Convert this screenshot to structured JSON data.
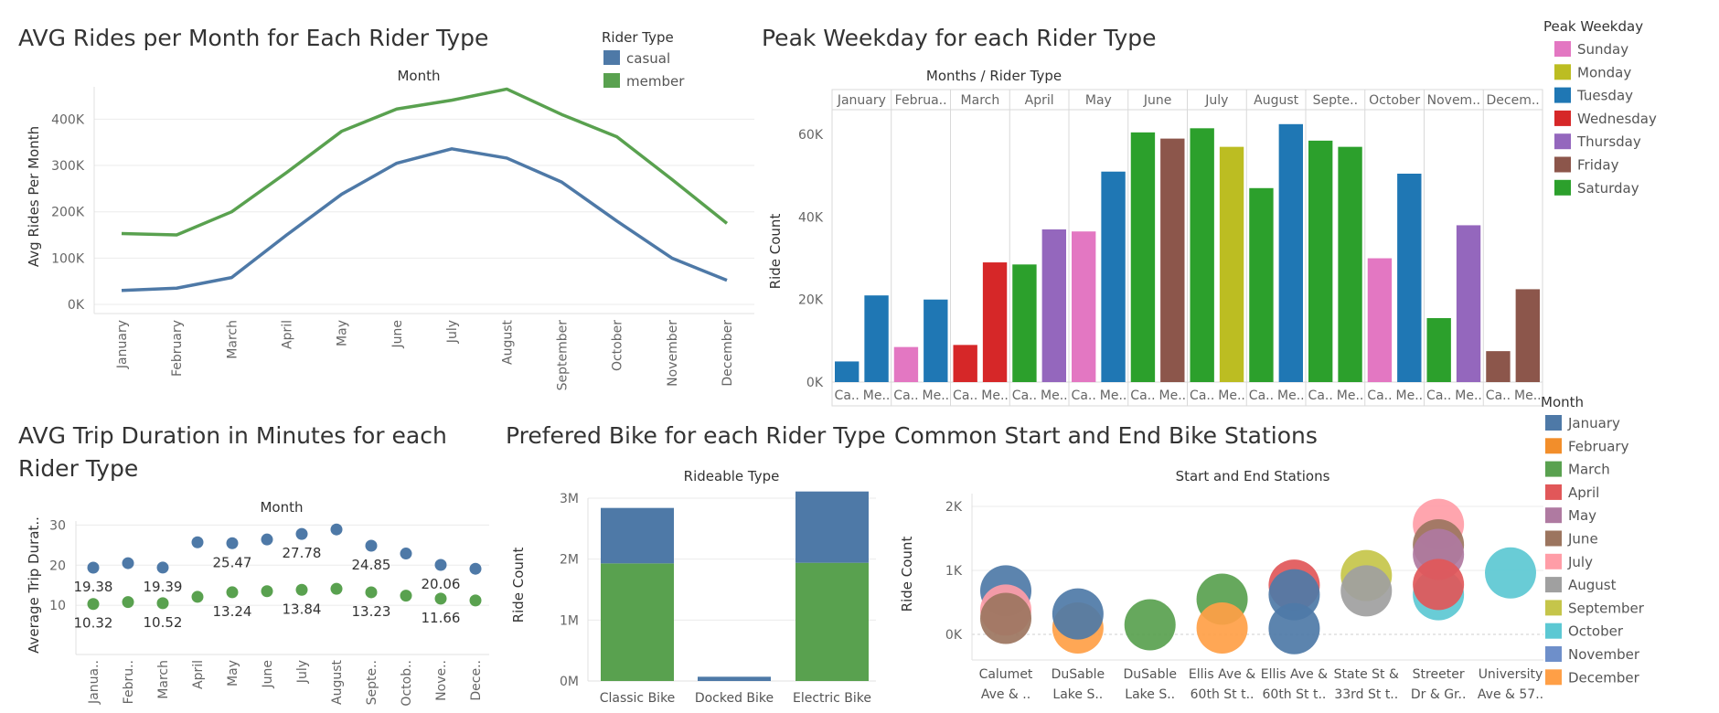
{
  "palette": {
    "casual": "#4e79a7",
    "member": "#59a14f",
    "weekday": {
      "Sunday": "#e377c2",
      "Monday": "#bcbd22",
      "Tuesday": "#1f77b4",
      "Wednesday": "#d62728",
      "Thursday": "#9467bd",
      "Friday": "#8c564b",
      "Saturday": "#2ca02c"
    },
    "month": [
      "#4e79a7",
      "#f28e2b",
      "#59a14f",
      "#e15759",
      "#af7aa1",
      "#9c755f",
      "#ff9da7",
      "#a0a0a0",
      "#c5c54a",
      "#5cc8d3",
      "#6e8fca",
      "#ff9f46"
    ]
  },
  "rider_legend": {
    "title": "Rider Type",
    "items": [
      "casual",
      "member"
    ]
  },
  "weekday_legend": {
    "title": "Peak Weekday",
    "items": [
      "Sunday",
      "Monday",
      "Tuesday",
      "Wednesday",
      "Thursday",
      "Friday",
      "Saturday"
    ]
  },
  "month_legend": {
    "title": "Month",
    "items": [
      "January",
      "February",
      "March",
      "April",
      "May",
      "June",
      "July",
      "August",
      "September",
      "October",
      "November",
      "December"
    ]
  },
  "chart_data": [
    {
      "type": "line",
      "title": "AVG Rides per Month for Each Rider Type",
      "xlabel": "Month",
      "ylabel": "Avg Rides Per Month",
      "categories": [
        "January",
        "February",
        "March",
        "April",
        "May",
        "June",
        "July",
        "August",
        "September",
        "October",
        "November",
        "December"
      ],
      "y_ticks": [
        "0K",
        "100K",
        "200K",
        "300K",
        "400K"
      ],
      "ylim": [
        0,
        460000
      ],
      "grid": true,
      "legend": "top-right",
      "series": [
        {
          "name": "casual",
          "values": [
            30000,
            35000,
            58000,
            150000,
            238000,
            305000,
            336000,
            316000,
            264000,
            180000,
            100000,
            52000
          ]
        },
        {
          "name": "member",
          "values": [
            153000,
            150000,
            200000,
            285000,
            374000,
            422000,
            441000,
            465000,
            410000,
            362000,
            270000,
            175000
          ]
        }
      ]
    },
    {
      "type": "bar",
      "title": "Peak Weekday for each Rider Type",
      "xlabel": "Months / Rider Type",
      "ylabel": "Ride Count",
      "months": [
        "January",
        "Februa..",
        "March",
        "April",
        "May",
        "June",
        "July",
        "August",
        "Septe..",
        "October",
        "Novem..",
        "Decem.."
      ],
      "rider_labels": [
        "Ca..",
        "Me.."
      ],
      "y_ticks": [
        "0K",
        "20K",
        "40K",
        "60K"
      ],
      "ylim": [
        0,
        66000
      ],
      "legend": "right",
      "bars": [
        {
          "weekday": "Tuesday",
          "value": 5000
        },
        {
          "weekday": "Tuesday",
          "value": 21000
        },
        {
          "weekday": "Sunday",
          "value": 8500
        },
        {
          "weekday": "Tuesday",
          "value": 20000
        },
        {
          "weekday": "Wednesday",
          "value": 9000
        },
        {
          "weekday": "Wednesday",
          "value": 29000
        },
        {
          "weekday": "Saturday",
          "value": 28500
        },
        {
          "weekday": "Thursday",
          "value": 37000
        },
        {
          "weekday": "Sunday",
          "value": 36500
        },
        {
          "weekday": "Tuesday",
          "value": 51000
        },
        {
          "weekday": "Saturday",
          "value": 60500
        },
        {
          "weekday": "Friday",
          "value": 59000
        },
        {
          "weekday": "Saturday",
          "value": 61500
        },
        {
          "weekday": "Monday",
          "value": 57000
        },
        {
          "weekday": "Saturday",
          "value": 47000
        },
        {
          "weekday": "Tuesday",
          "value": 62500
        },
        {
          "weekday": "Saturday",
          "value": 58500
        },
        {
          "weekday": "Saturday",
          "value": 57000
        },
        {
          "weekday": "Sunday",
          "value": 30000
        },
        {
          "weekday": "Tuesday",
          "value": 50500
        },
        {
          "weekday": "Saturday",
          "value": 15500
        },
        {
          "weekday": "Thursday",
          "value": 38000
        },
        {
          "weekday": "Friday",
          "value": 7500
        },
        {
          "weekday": "Friday",
          "value": 22500
        }
      ]
    },
    {
      "type": "scatter",
      "title": "AVG Trip Duration in Minutes for each",
      "title_line2": "Rider Type",
      "xlabel": "Month",
      "ylabel": "Average Trip Durat..",
      "categories": [
        "Janua..",
        "Febru..",
        "March",
        "April",
        "May",
        "June",
        "July",
        "August",
        "Septe..",
        "Octob..",
        "Nove..",
        "Dece.."
      ],
      "y_ticks": [
        "10",
        "20",
        "30"
      ],
      "ylim": [
        0,
        31
      ],
      "series": [
        {
          "name": "casual",
          "values": [
            19.38,
            20.5,
            19.39,
            25.7,
            25.47,
            26.4,
            27.78,
            28.9,
            24.85,
            22.9,
            20.06,
            19.1
          ]
        },
        {
          "name": "member",
          "values": [
            10.32,
            10.8,
            10.52,
            12.1,
            13.24,
            13.5,
            13.84,
            14.1,
            13.23,
            12.4,
            11.66,
            11.2
          ]
        }
      ],
      "labels": [
        {
          "series": 0,
          "index": 0,
          "text": "19.38"
        },
        {
          "series": 0,
          "index": 2,
          "text": "19.39"
        },
        {
          "series": 0,
          "index": 4,
          "text": "25.47"
        },
        {
          "series": 0,
          "index": 6,
          "text": "27.78"
        },
        {
          "series": 0,
          "index": 8,
          "text": "24.85"
        },
        {
          "series": 0,
          "index": 10,
          "text": "20.06"
        },
        {
          "series": 1,
          "index": 0,
          "text": "10.32"
        },
        {
          "series": 1,
          "index": 2,
          "text": "10.52"
        },
        {
          "series": 1,
          "index": 4,
          "text": "13.24"
        },
        {
          "series": 1,
          "index": 6,
          "text": "13.84"
        },
        {
          "series": 1,
          "index": 8,
          "text": "13.23"
        },
        {
          "series": 1,
          "index": 10,
          "text": "11.66"
        }
      ]
    },
    {
      "type": "bar",
      "stacked": true,
      "title": "Prefered Bike for each Rider Type",
      "xlabel": "Rideable Type",
      "ylabel": "Ride Count",
      "categories": [
        "Classic Bike",
        "Docked Bike",
        "Electric Bike"
      ],
      "y_ticks": [
        "0M",
        "1M",
        "2M",
        "3M"
      ],
      "ylim": [
        0,
        3000000
      ],
      "series": [
        {
          "name": "member",
          "values": [
            1930000,
            0,
            1940000
          ]
        },
        {
          "name": "casual",
          "values": [
            910000,
            70000,
            1170000
          ]
        }
      ]
    },
    {
      "type": "scatter",
      "title": "Common Start and End Bike Stations",
      "xlabel": "Start and End Stations",
      "ylabel": "Ride Count",
      "categories": [
        [
          "Calumet",
          "Ave & .."
        ],
        [
          "DuSable",
          "Lake S.."
        ],
        [
          "DuSable",
          "Lake S.."
        ],
        [
          "Ellis Ave &",
          "60th St t.."
        ],
        [
          "Ellis Ave &",
          "60th St t.."
        ],
        [
          "State St &",
          "33rd St t.."
        ],
        [
          "Streeter",
          "Dr & Gr.."
        ],
        [
          "University",
          "Ave & 57.."
        ]
      ],
      "y_ticks": [
        "0K",
        "1K",
        "2K"
      ],
      "ylim": [
        -400,
        2200
      ],
      "points": [
        {
          "x": 0,
          "month": "January",
          "value": 680
        },
        {
          "x": 0,
          "month": "July",
          "value": 380
        },
        {
          "x": 0,
          "month": "June",
          "value": 250
        },
        {
          "x": 1,
          "month": "December",
          "value": 100
        },
        {
          "x": 1,
          "month": "January",
          "value": 320
        },
        {
          "x": 2,
          "month": "March",
          "value": 150
        },
        {
          "x": 3,
          "month": "March",
          "value": 550
        },
        {
          "x": 3,
          "month": "December",
          "value": 100
        },
        {
          "x": 4,
          "month": "April",
          "value": 770
        },
        {
          "x": 4,
          "month": "January",
          "value": 620
        },
        {
          "x": 4,
          "month": "January",
          "value": 90
        },
        {
          "x": 5,
          "month": "September",
          "value": 920
        },
        {
          "x": 5,
          "month": "August",
          "value": 680
        },
        {
          "x": 6,
          "month": "October",
          "value": 620
        },
        {
          "x": 6,
          "month": "July",
          "value": 1720
        },
        {
          "x": 6,
          "month": "June",
          "value": 1400
        },
        {
          "x": 6,
          "month": "May",
          "value": 1250
        },
        {
          "x": 6,
          "month": "April",
          "value": 780
        },
        {
          "x": 7,
          "month": "October",
          "value": 960
        }
      ]
    }
  ]
}
